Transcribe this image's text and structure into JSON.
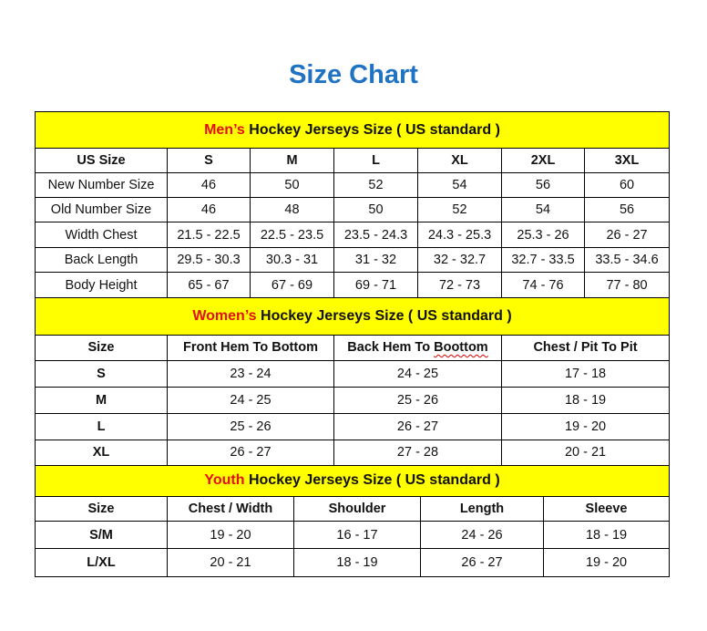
{
  "title": "Size Chart",
  "men": {
    "heading_highlight": "Men’s",
    "heading_rest": " Hockey Jerseys Size ( US standard )",
    "headers": [
      "US Size",
      "S",
      "M",
      "L",
      "XL",
      "2XL",
      "3XL"
    ],
    "rows": [
      [
        "New Number Size",
        "46",
        "50",
        "52",
        "54",
        "56",
        "60"
      ],
      [
        "Old Number Size",
        "46",
        "48",
        "50",
        "52",
        "54",
        "56"
      ],
      [
        "Width Chest",
        "21.5 - 22.5",
        "22.5 - 23.5",
        "23.5 - 24.3",
        "24.3 - 25.3",
        "25.3 - 26",
        "26 - 27"
      ],
      [
        "Back Length",
        "29.5 - 30.3",
        "30.3 - 31",
        "31 - 32",
        "32 - 32.7",
        "32.7 - 33.5",
        "33.5 - 34.6"
      ],
      [
        "Body Height",
        "65 - 67",
        "67 - 69",
        "69 - 71",
        "72 - 73",
        "74 - 76",
        "77 - 80"
      ]
    ]
  },
  "women": {
    "heading_highlight": "Women’s",
    "heading_rest": " Hockey Jerseys Size ( US standard )",
    "headers": [
      "Size",
      "Front Hem To Bottom",
      "Back Hem To Boottom",
      "Chest / Pit To Pit"
    ],
    "rows": [
      [
        "S",
        "23 - 24",
        "24 - 25",
        "17 - 18"
      ],
      [
        "M",
        "24 - 25",
        "25 - 26",
        "18 - 19"
      ],
      [
        "L",
        "25 - 26",
        "26 - 27",
        "19 - 20"
      ],
      [
        "XL",
        "26 - 27",
        "27 - 28",
        "20 - 21"
      ]
    ]
  },
  "youth": {
    "heading_highlight": "Youth",
    "heading_rest": " Hockey Jerseys Size ( US standard )",
    "headers": [
      "Size",
      "Chest / Width",
      "Shoulder",
      "Length",
      "Sleeve"
    ],
    "rows": [
      [
        "S/M",
        "19 - 20",
        "16 - 17",
        "24 - 26",
        "18 - 19"
      ],
      [
        "L/XL",
        "20 - 21",
        "18 - 19",
        "26 - 27",
        "19 - 20"
      ]
    ]
  },
  "colors": {
    "title": "#1f73c2",
    "highlight": "#e31010",
    "header_bg": "#ffff00"
  }
}
